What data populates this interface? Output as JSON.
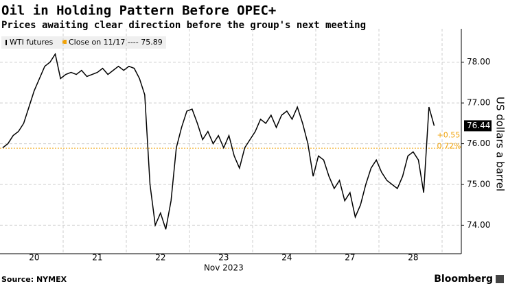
{
  "chart_data": {
    "type": "line",
    "title": "Oil in Holding Pattern Before OPEC+",
    "subtitle": "Prices awaiting clear direction before the group's next meeting",
    "categories": [
      null,
      null,
      null,
      null,
      null,
      null,
      "20",
      null,
      null,
      null,
      null,
      null,
      null,
      null,
      null,
      null,
      null,
      null,
      "21",
      null,
      null,
      null,
      null,
      null,
      null,
      null,
      null,
      null,
      null,
      null,
      "22",
      null,
      null,
      null,
      null,
      null,
      null,
      null,
      null,
      null,
      null,
      null,
      "23",
      null,
      null,
      null,
      null,
      null,
      null,
      null,
      null,
      null,
      null,
      null,
      "24",
      null,
      null,
      null,
      null,
      null,
      null,
      null,
      null,
      null,
      null,
      null,
      "27",
      null,
      null,
      null,
      null,
      null,
      null,
      null,
      null,
      null,
      null,
      null,
      "28",
      null,
      null,
      null,
      null
    ],
    "x_label": "Nov 2023",
    "series": [
      {
        "name": "WTI futures",
        "color": "#000000",
        "values": [
          75.9,
          76.0,
          76.2,
          76.3,
          76.5,
          76.9,
          77.3,
          77.6,
          77.9,
          78.0,
          78.2,
          77.6,
          77.7,
          77.75,
          77.7,
          77.8,
          77.65,
          77.7,
          77.75,
          77.85,
          77.7,
          77.8,
          77.9,
          77.8,
          77.9,
          77.85,
          77.6,
          77.2,
          75.0,
          74.0,
          74.3,
          73.9,
          74.6,
          75.9,
          76.4,
          76.8,
          76.85,
          76.5,
          76.1,
          76.3,
          76.0,
          76.2,
          75.9,
          76.2,
          75.7,
          75.4,
          75.9,
          76.1,
          76.3,
          76.6,
          76.5,
          76.7,
          76.4,
          76.7,
          76.8,
          76.6,
          76.9,
          76.5,
          76.0,
          75.2,
          75.7,
          75.6,
          75.2,
          74.9,
          75.1,
          74.6,
          74.8,
          74.2,
          74.5,
          75.0,
          75.4,
          75.6,
          75.3,
          75.1,
          75.0,
          74.9,
          75.2,
          75.7,
          75.8,
          75.6,
          74.8,
          76.9,
          76.44
        ]
      }
    ],
    "reference_line": {
      "label": "Close on 11/17 ---- 75.89",
      "value": 75.89,
      "color": "#f0a30a"
    },
    "change_label": "+0.55",
    "change_pct_label": "0.72%",
    "ylabel": "US dollars a barrel",
    "ylim": [
      73.3,
      78.82
    ],
    "yticks": [
      {
        "value": 74,
        "label": "74.00"
      },
      {
        "value": 75,
        "label": "75.00"
      },
      {
        "value": 76,
        "label": "76.00"
      },
      {
        "value": 77,
        "label": "77.00"
      },
      {
        "value": 78,
        "label": "78.00"
      }
    ],
    "grid": true,
    "source": "Source: NYMEX",
    "brand": "Bloomberg"
  }
}
